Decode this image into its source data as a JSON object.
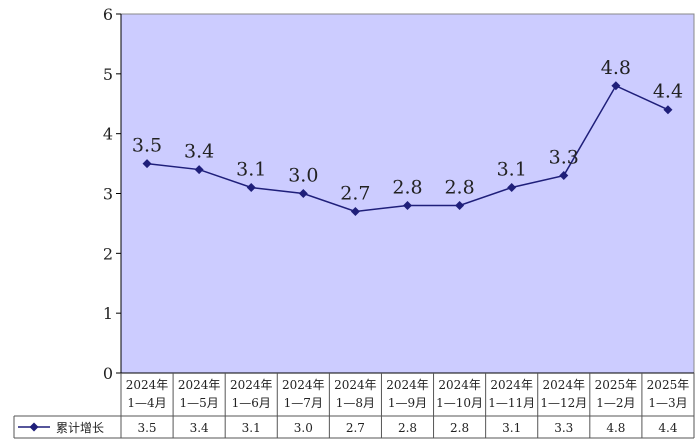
{
  "chart_data": {
    "type": "line",
    "categories": [
      [
        "2024年",
        "1—4月"
      ],
      [
        "2024年",
        "1—5月"
      ],
      [
        "2024年",
        "1—6月"
      ],
      [
        "2024年",
        "1—7月"
      ],
      [
        "2024年",
        "1—8月"
      ],
      [
        "2024年",
        "1—9月"
      ],
      [
        "2024年",
        "1—10月"
      ],
      [
        "2024年",
        "1—11月"
      ],
      [
        "2024年",
        "1—12月"
      ],
      [
        "2025年",
        "1—2月"
      ],
      [
        "2025年",
        "1—3月"
      ]
    ],
    "series": [
      {
        "name": "累计增长",
        "values": [
          3.5,
          3.4,
          3.1,
          3.0,
          2.7,
          2.8,
          2.8,
          3.1,
          3.3,
          4.8,
          4.4
        ],
        "labels": [
          "3.5",
          "3.4",
          "3.1",
          "3.0",
          "2.7",
          "2.8",
          "2.8",
          "3.1",
          "3.3",
          "4.8",
          "4.4"
        ],
        "color": "#1f1f7a",
        "marker": "diamond"
      }
    ],
    "yticks": [
      "0",
      "1",
      "2",
      "3",
      "4",
      "5",
      "6"
    ],
    "ylim": [
      0,
      6
    ],
    "grid": false,
    "plot_background": "#ccccff",
    "legend_position": "data-table-left"
  }
}
